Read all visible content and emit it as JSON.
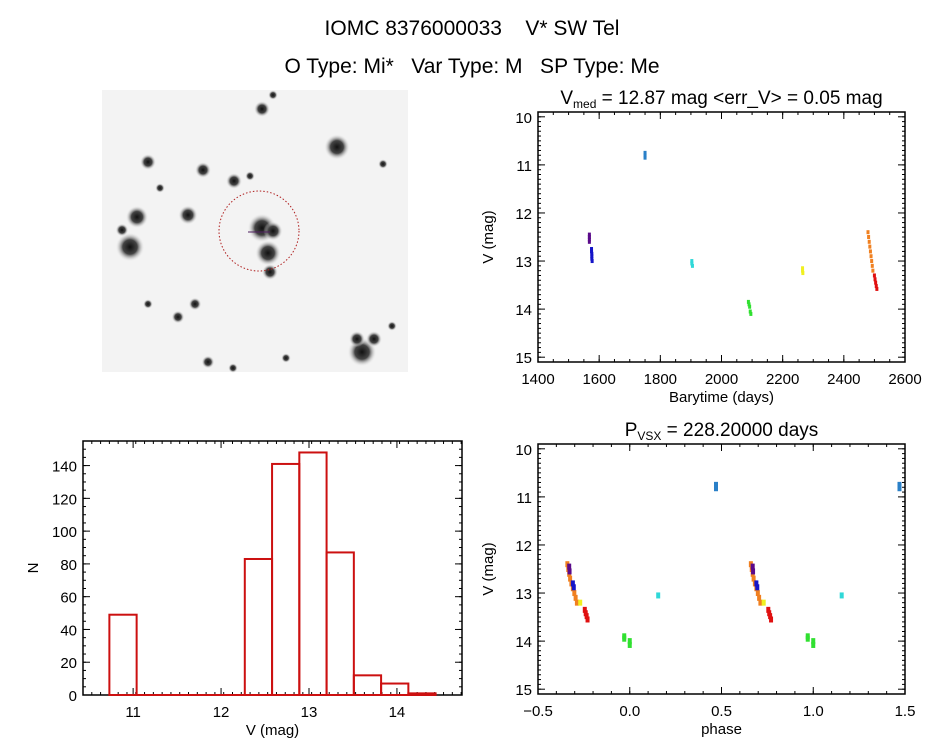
{
  "header": {
    "title": "IOMC 8376000033    V* SW Tel",
    "subtitle": "O Type: Mi*   Var Type: M   SP Type: Me"
  },
  "chart_data": [
    {
      "id": "lightcurve",
      "type": "scatter",
      "title_main": "V",
      "title_sub": "med",
      "title_rest": " = 12.87 mag <err_V> = 0.05 mag",
      "xlabel": "Barytime (days)",
      "ylabel": "V (mag)",
      "xlim": [
        1400,
        2600
      ],
      "ylim": [
        15.1,
        9.9
      ],
      "xticks": [
        1400,
        1600,
        1800,
        2000,
        2200,
        2400,
        2600
      ],
      "yticks": [
        10,
        11,
        12,
        13,
        14,
        15
      ],
      "series": [
        {
          "name": "purple",
          "color": "#5a0a8a",
          "points": [
            [
              1568,
              12.45
            ],
            [
              1568,
              12.5
            ],
            [
              1568,
              12.55
            ],
            [
              1568,
              12.6
            ]
          ]
        },
        {
          "name": "blue",
          "color": "#1414c8",
          "points": [
            [
              1575,
              12.75
            ],
            [
              1575,
              12.8
            ],
            [
              1576,
              12.85
            ],
            [
              1576,
              12.9
            ],
            [
              1576,
              12.95
            ],
            [
              1577,
              13.0
            ]
          ]
        },
        {
          "name": "steelblue",
          "color": "#2a80c8",
          "points": [
            [
              1750,
              10.75
            ],
            [
              1750,
              10.8
            ],
            [
              1750,
              10.85
            ]
          ]
        },
        {
          "name": "cyan",
          "color": "#30d8d8",
          "points": [
            [
              1903,
              13.0
            ],
            [
              1903,
              13.05
            ],
            [
              1905,
              13.1
            ]
          ]
        },
        {
          "name": "green",
          "color": "#30e030",
          "points": [
            [
              2088,
              13.85
            ],
            [
              2090,
              13.9
            ],
            [
              2092,
              13.95
            ],
            [
              2094,
              14.05
            ],
            [
              2096,
              14.1
            ]
          ]
        },
        {
          "name": "yellow",
          "color": "#f0f020",
          "points": [
            [
              2265,
              13.15
            ],
            [
              2265,
              13.2
            ],
            [
              2266,
              13.25
            ]
          ]
        },
        {
          "name": "orange",
          "color": "#f08020",
          "points": [
            [
              2479,
              12.4
            ],
            [
              2481,
              12.5
            ],
            [
              2483,
              12.6
            ],
            [
              2485,
              12.7
            ],
            [
              2487,
              12.8
            ],
            [
              2489,
              12.9
            ],
            [
              2491,
              13.0
            ],
            [
              2493,
              13.1
            ],
            [
              2495,
              13.2
            ]
          ]
        },
        {
          "name": "red",
          "color": "#e01010",
          "points": [
            [
              2500,
              13.3
            ],
            [
              2502,
              13.38
            ],
            [
              2504,
              13.45
            ],
            [
              2506,
              13.52
            ],
            [
              2508,
              13.58
            ]
          ]
        }
      ]
    },
    {
      "id": "histogram",
      "type": "bar",
      "xlabel": "V (mag)",
      "ylabel": "N",
      "xlim": [
        10.43,
        14.74
      ],
      "ylim": [
        0,
        155
      ],
      "xticks": [
        11,
        12,
        13,
        14
      ],
      "yticks": [
        0,
        20,
        40,
        60,
        80,
        100,
        120,
        140
      ],
      "bar_color": "#cc1010",
      "bins": [
        {
          "from": 10.73,
          "to": 11.04,
          "n": 49
        },
        {
          "from": 12.27,
          "to": 12.58,
          "n": 83
        },
        {
          "from": 12.58,
          "to": 12.89,
          "n": 141
        },
        {
          "from": 12.89,
          "to": 13.2,
          "n": 148
        },
        {
          "from": 13.2,
          "to": 13.51,
          "n": 87
        },
        {
          "from": 13.51,
          "to": 13.82,
          "n": 12
        },
        {
          "from": 13.82,
          "to": 14.13,
          "n": 7
        },
        {
          "from": 14.13,
          "to": 14.44,
          "n": 1
        }
      ]
    },
    {
      "id": "phased",
      "type": "scatter",
      "title_main": "P",
      "title_sub": "VSX",
      "title_rest": " = 228.20000 days",
      "xlabel": "phase",
      "ylabel": "V (mag)",
      "xlim": [
        -0.5,
        1.5
      ],
      "ylim": [
        15.1,
        9.9
      ],
      "xticks": [
        -0.5,
        0.0,
        0.5,
        1.0,
        1.5
      ],
      "xtick_labels": [
        "−0.5",
        "0.0",
        "0.5",
        "1.0",
        "1.5"
      ],
      "yticks": [
        10,
        11,
        12,
        13,
        14,
        15
      ],
      "series": [
        {
          "name": "orange",
          "color": "#f08020",
          "points": [
            [
              -0.34,
              12.4
            ],
            [
              -0.335,
              12.5
            ],
            [
              -0.33,
              12.6
            ],
            [
              -0.325,
              12.7
            ],
            [
              -0.318,
              12.8
            ],
            [
              -0.31,
              12.9
            ],
            [
              -0.302,
              13.0
            ],
            [
              -0.295,
              13.1
            ],
            [
              -0.288,
              13.2
            ]
          ]
        },
        {
          "name": "purple",
          "color": "#5a0a8a",
          "points": [
            [
              -0.33,
              12.45
            ],
            [
              -0.328,
              12.55
            ]
          ]
        },
        {
          "name": "blue",
          "color": "#1414c8",
          "points": [
            [
              -0.31,
              12.8
            ],
            [
              -0.305,
              12.88
            ]
          ]
        },
        {
          "name": "yellow",
          "color": "#f0f020",
          "points": [
            [
              -0.27,
              13.2
            ]
          ]
        },
        {
          "name": "red",
          "color": "#e01010",
          "points": [
            [
              -0.245,
              13.35
            ],
            [
              -0.24,
              13.42
            ],
            [
              -0.235,
              13.48
            ],
            [
              -0.23,
              13.55
            ]
          ]
        },
        {
          "name": "steelblue",
          "color": "#2a80c8",
          "points": [
            [
              0.47,
              10.75
            ],
            [
              0.47,
              10.82
            ]
          ]
        },
        {
          "name": "cyan",
          "color": "#30d8d8",
          "points": [
            [
              0.155,
              13.05
            ]
          ]
        },
        {
          "name": "green",
          "color": "#30e030",
          "points": [
            [
              -0.03,
              13.9
            ],
            [
              -0.03,
              13.95
            ],
            [
              0.0,
              14.0
            ],
            [
              0.0,
              14.08
            ]
          ]
        }
      ]
    }
  ]
}
